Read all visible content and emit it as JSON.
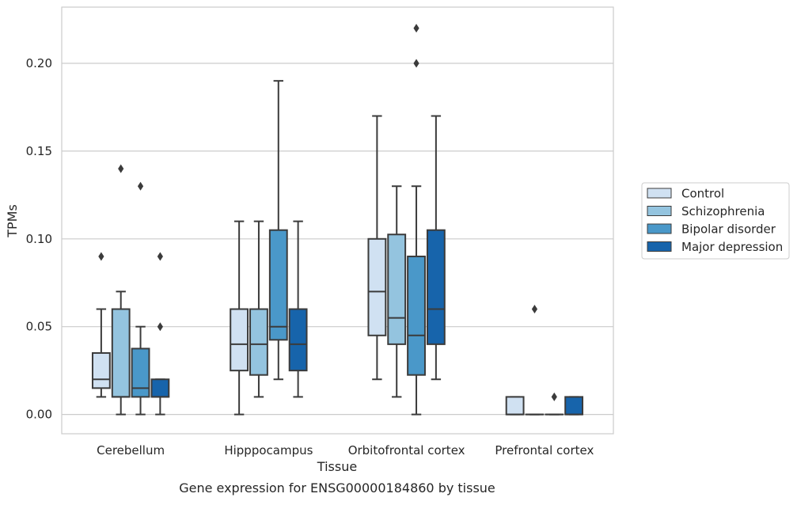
{
  "chart_data": {
    "type": "box",
    "title": "",
    "caption": "Gene expression for ENSG00000184860 by tissue",
    "xlabel": "Tissue",
    "ylabel": "TPMs",
    "ylim": [
      -0.011,
      0.232
    ],
    "yticks": [
      0.0,
      0.05,
      0.1,
      0.15,
      0.2
    ],
    "ytick_labels": [
      "0.00",
      "0.05",
      "0.10",
      "0.15",
      "0.20"
    ],
    "grid": "horizontal",
    "legend_position": "right",
    "categories": [
      "Cerebellum",
      "Hipppocampus",
      "Orbitofrontal cortex",
      "Prefrontal cortex"
    ],
    "series": [
      {
        "name": "Control",
        "color": "#d0e1f2",
        "boxes": [
          {
            "whisker_low": 0.01,
            "q1": 0.015,
            "median": 0.02,
            "q3": 0.035,
            "whisker_high": 0.06,
            "outliers": [
              0.09
            ]
          },
          {
            "whisker_low": 0.0,
            "q1": 0.025,
            "median": 0.04,
            "q3": 0.06,
            "whisker_high": 0.11,
            "outliers": []
          },
          {
            "whisker_low": 0.02,
            "q1": 0.045,
            "median": 0.07,
            "q3": 0.1,
            "whisker_high": 0.17,
            "outliers": []
          },
          {
            "whisker_low": 0.0,
            "q1": 0.0,
            "median": 0.0,
            "q3": 0.01,
            "whisker_high": 0.01,
            "outliers": []
          }
        ]
      },
      {
        "name": "Schizophrenia",
        "color": "#94c4df",
        "boxes": [
          {
            "whisker_low": 0.0,
            "q1": 0.01,
            "median": 0.01,
            "q3": 0.06,
            "whisker_high": 0.07,
            "outliers": [
              0.14
            ]
          },
          {
            "whisker_low": 0.01,
            "q1": 0.0225,
            "median": 0.04,
            "q3": 0.06,
            "whisker_high": 0.11,
            "outliers": []
          },
          {
            "whisker_low": 0.01,
            "q1": 0.04,
            "median": 0.055,
            "q3": 0.1025,
            "whisker_high": 0.13,
            "outliers": []
          },
          {
            "whisker_low": 0.0,
            "q1": 0.0,
            "median": 0.0,
            "q3": 0.0,
            "whisker_high": 0.0,
            "outliers": [
              0.06
            ]
          }
        ]
      },
      {
        "name": "Bipolar disorder",
        "color": "#4a98c9",
        "boxes": [
          {
            "whisker_low": 0.0,
            "q1": 0.01,
            "median": 0.015,
            "q3": 0.0375,
            "whisker_high": 0.05,
            "outliers": [
              0.13
            ]
          },
          {
            "whisker_low": 0.02,
            "q1": 0.0425,
            "median": 0.05,
            "q3": 0.105,
            "whisker_high": 0.19,
            "outliers": []
          },
          {
            "whisker_low": 0.0,
            "q1": 0.0225,
            "median": 0.045,
            "q3": 0.09,
            "whisker_high": 0.13,
            "outliers": [
              0.2,
              0.22
            ]
          },
          {
            "whisker_low": 0.0,
            "q1": 0.0,
            "median": 0.0,
            "q3": 0.0,
            "whisker_high": 0.0,
            "outliers": [
              0.01
            ]
          }
        ]
      },
      {
        "name": "Major depression",
        "color": "#1764ab",
        "boxes": [
          {
            "whisker_low": 0.0,
            "q1": 0.01,
            "median": 0.01,
            "q3": 0.02,
            "whisker_high": 0.02,
            "outliers": [
              0.05,
              0.09
            ]
          },
          {
            "whisker_low": 0.01,
            "q1": 0.025,
            "median": 0.04,
            "q3": 0.06,
            "whisker_high": 0.11,
            "outliers": []
          },
          {
            "whisker_low": 0.02,
            "q1": 0.04,
            "median": 0.06,
            "q3": 0.105,
            "whisker_high": 0.17,
            "outliers": []
          },
          {
            "whisker_low": 0.0,
            "q1": 0.0,
            "median": 0.0,
            "q3": 0.01,
            "whisker_high": 0.01,
            "outliers": []
          }
        ]
      }
    ]
  }
}
